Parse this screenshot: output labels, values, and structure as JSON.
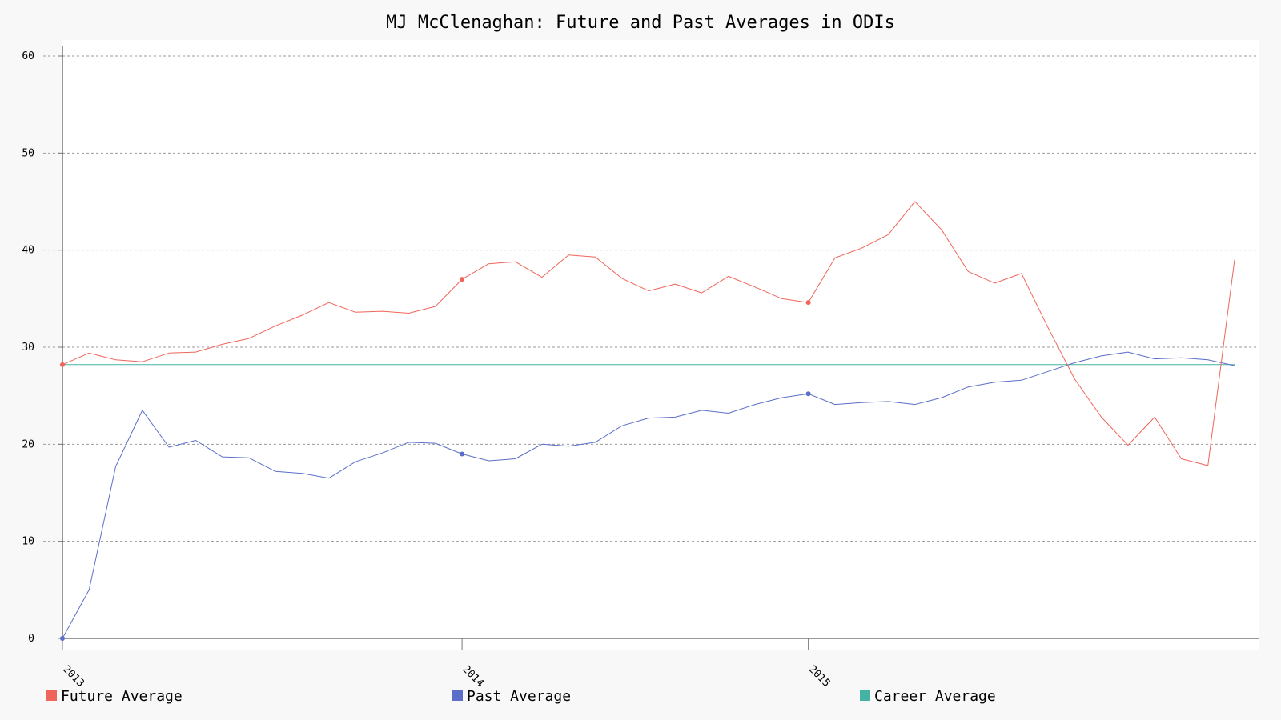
{
  "chart_data": {
    "type": "line",
    "title": "MJ McClenaghan: Future and Past Averages in ODIs",
    "xlabel": "",
    "ylabel": "",
    "ylim": [
      0,
      60
    ],
    "y_ticks": [
      0,
      10,
      20,
      30,
      40,
      50,
      60
    ],
    "x_count": 45,
    "x_tick_labels": [
      {
        "index": 0,
        "label": "2013"
      },
      {
        "index": 15,
        "label": "2014"
      },
      {
        "index": 28,
        "label": "2015"
      }
    ],
    "grid": "horizontal dashed",
    "legend_position": "bottom",
    "series": [
      {
        "name": "Future Average",
        "color": "#f0655a",
        "markers": [
          0,
          15,
          28
        ],
        "values": [
          28.2,
          29.4,
          28.7,
          28.5,
          29.4,
          29.5,
          30.3,
          30.9,
          32.2,
          33.3,
          34.6,
          33.6,
          33.7,
          33.5,
          34.2,
          37.0,
          38.6,
          38.8,
          37.2,
          39.5,
          39.3,
          37.1,
          35.8,
          36.5,
          35.6,
          37.3,
          36.2,
          35.0,
          34.6,
          39.2,
          40.2,
          41.6,
          45.0,
          42.1,
          37.8,
          36.6,
          37.6,
          32.0,
          26.7,
          22.8,
          19.9,
          22.8,
          18.5,
          17.8,
          39.0
        ]
      },
      {
        "name": "Past Average",
        "color": "#5b6ec8",
        "markers": [
          0,
          15,
          28
        ],
        "values": [
          0,
          5.0,
          17.7,
          23.5,
          19.7,
          20.4,
          18.7,
          18.6,
          17.2,
          17.0,
          16.5,
          18.2,
          19.1,
          20.2,
          20.1,
          19.0,
          18.3,
          18.5,
          20.0,
          19.8,
          20.2,
          21.9,
          22.7,
          22.8,
          23.5,
          23.2,
          24.1,
          24.8,
          25.2,
          24.1,
          24.3,
          24.4,
          24.1,
          24.8,
          25.9,
          26.4,
          26.6,
          27.5,
          28.4,
          29.1,
          29.5,
          28.8,
          28.9,
          28.7,
          28.1
        ]
      },
      {
        "name": "Career Average",
        "color": "#45b3a4",
        "markers": [],
        "values": [
          28.2,
          28.2,
          28.2,
          28.2,
          28.2,
          28.2,
          28.2,
          28.2,
          28.2,
          28.2,
          28.2,
          28.2,
          28.2,
          28.2,
          28.2,
          28.2,
          28.2,
          28.2,
          28.2,
          28.2,
          28.2,
          28.2,
          28.2,
          28.2,
          28.2,
          28.2,
          28.2,
          28.2,
          28.2,
          28.2,
          28.2,
          28.2,
          28.2,
          28.2,
          28.2,
          28.2,
          28.2,
          28.2,
          28.2,
          28.2,
          28.2,
          28.2,
          28.2,
          28.2,
          28.2
        ]
      }
    ]
  }
}
